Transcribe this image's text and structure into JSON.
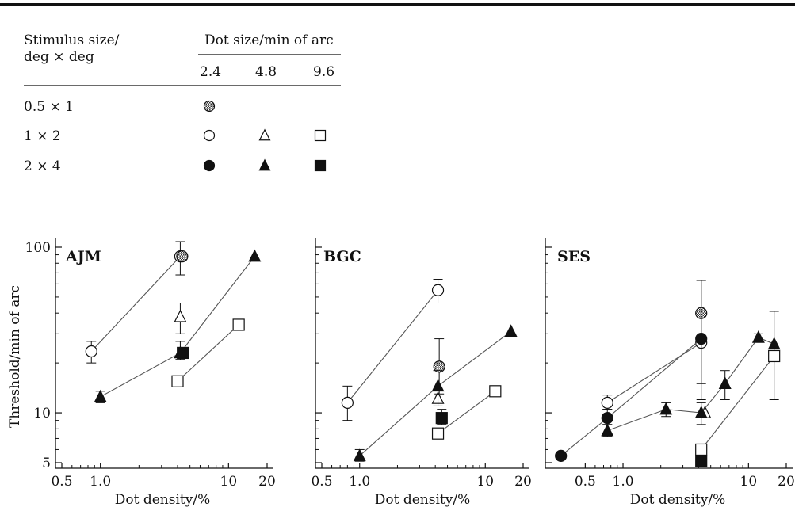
{
  "legend": {
    "row_header_line1": "Stimulus size/",
    "row_header_line2": "deg × deg",
    "col_header": "Dot size/min of arc",
    "dot_sizes": [
      "2.4",
      "4.8",
      "9.6"
    ],
    "stimulus_sizes": [
      "0.5 × 1",
      "1 × 2",
      "2 × 4"
    ],
    "entries": [
      {
        "stim": 0,
        "dot": 0,
        "marker": "circle",
        "fill": "hatched"
      },
      {
        "stim": 1,
        "dot": 0,
        "marker": "circle",
        "fill": "open"
      },
      {
        "stim": 1,
        "dot": 1,
        "marker": "triangle",
        "fill": "open"
      },
      {
        "stim": 1,
        "dot": 2,
        "marker": "square",
        "fill": "open"
      },
      {
        "stim": 2,
        "dot": 0,
        "marker": "circle",
        "fill": "filled"
      },
      {
        "stim": 2,
        "dot": 1,
        "marker": "triangle",
        "fill": "filled"
      },
      {
        "stim": 2,
        "dot": 2,
        "marker": "square",
        "fill": "filled"
      }
    ]
  },
  "shared": {
    "ylabel": "Threshold/min of arc",
    "xlabel": "Dot density/%",
    "yticks": [
      5,
      10,
      100
    ],
    "ytick_labels": [
      "5",
      "10",
      "100"
    ],
    "xticks": [
      0.5,
      1.0,
      10,
      20
    ],
    "xtick_labels": [
      "0.5",
      "1.0",
      "10",
      "20"
    ],
    "ylim": [
      5,
      100
    ],
    "xlim": [
      0.5,
      20
    ],
    "xscale": "log",
    "yscale": "log",
    "colors": {
      "ink": "#111111",
      "line": "#555555"
    }
  },
  "chart_data": [
    {
      "type": "scatter",
      "title": "AJM",
      "series": [
        {
          "marker": "circle",
          "fill": "open",
          "points": [
            {
              "x": 0.85,
              "y": 23.5,
              "err": [
                20,
                27
              ]
            },
            {
              "x": 4.2,
              "y": 88,
              "err": [
                68,
                108
              ]
            }
          ]
        },
        {
          "marker": "circle",
          "fill": "hatched",
          "points": [
            {
              "x": 4.35,
              "y": 88
            }
          ]
        },
        {
          "marker": "triangle",
          "fill": "open",
          "points": [
            {
              "x": 4.2,
              "y": 38,
              "err": [
                30,
                46
              ]
            }
          ]
        },
        {
          "marker": "triangle",
          "fill": "filled",
          "points": [
            {
              "x": 1.0,
              "y": 12.5,
              "err": [
                11.5,
                13.5
              ]
            },
            {
              "x": 4.2,
              "y": 23,
              "err": [
                21,
                27
              ]
            },
            {
              "x": 16,
              "y": 88
            }
          ]
        },
        {
          "marker": "square",
          "fill": "open",
          "points": [
            {
              "x": 4.0,
              "y": 15.5
            },
            {
              "x": 12,
              "y": 34
            }
          ]
        },
        {
          "marker": "square",
          "fill": "filled",
          "points": [
            {
              "x": 4.4,
              "y": 23
            }
          ]
        }
      ]
    },
    {
      "type": "scatter",
      "title": "BGC",
      "series": [
        {
          "marker": "circle",
          "fill": "open",
          "points": [
            {
              "x": 0.8,
              "y": 11.5,
              "err": [
                9,
                14.5
              ]
            },
            {
              "x": 4.2,
              "y": 55,
              "err": [
                46,
                64
              ]
            }
          ]
        },
        {
          "marker": "circle",
          "fill": "hatched",
          "points": [
            {
              "x": 4.3,
              "y": 19,
              "err": [
                13,
                28
              ]
            }
          ]
        },
        {
          "marker": "triangle",
          "fill": "open",
          "points": [
            {
              "x": 4.2,
              "y": 12.2
            }
          ]
        },
        {
          "marker": "triangle",
          "fill": "filled",
          "points": [
            {
              "x": 1.0,
              "y": 5.5,
              "err": [
                5.1,
                6.0
              ]
            },
            {
              "x": 4.2,
              "y": 14.5,
              "err": [
                11,
                18
              ]
            },
            {
              "x": 16,
              "y": 31
            }
          ]
        },
        {
          "marker": "square",
          "fill": "open",
          "points": [
            {
              "x": 4.2,
              "y": 7.5
            },
            {
              "x": 12,
              "y": 13.5
            }
          ]
        },
        {
          "marker": "square",
          "fill": "filled",
          "points": [
            {
              "x": 4.5,
              "y": 9.3,
              "err": [
                8.5,
                10.5
              ]
            }
          ]
        }
      ]
    },
    {
      "type": "scatter",
      "title": "SES",
      "series": [
        {
          "marker": "circle",
          "fill": "open",
          "points": [
            {
              "x": 0.75,
              "y": 11.5,
              "err": [
                10.5,
                12.8
              ]
            },
            {
              "x": 4.2,
              "y": 26.5
            }
          ]
        },
        {
          "marker": "circle",
          "fill": "hatched",
          "points": [
            {
              "x": 4.2,
              "y": 40,
              "err": [
                15,
                63
              ]
            }
          ]
        },
        {
          "marker": "circle",
          "fill": "filled",
          "points": [
            {
              "x": 0.32,
              "y": 5.5
            },
            {
              "x": 0.75,
              "y": 9.3,
              "err": [
                8.5,
                10.5
              ]
            },
            {
              "x": 4.2,
              "y": 28,
              "err": [
                12,
                63
              ]
            }
          ]
        },
        {
          "marker": "triangle",
          "fill": "open",
          "points": [
            {
              "x": 4.5,
              "y": 10
            }
          ]
        },
        {
          "marker": "triangle",
          "fill": "filled",
          "points": [
            {
              "x": 0.75,
              "y": 7.8,
              "err": [
                7.2,
                8.5
              ]
            },
            {
              "x": 2.2,
              "y": 10.5,
              "err": [
                9.5,
                11.5
              ]
            },
            {
              "x": 4.2,
              "y": 10,
              "err": [
                8.5,
                11.5
              ]
            },
            {
              "x": 6.5,
              "y": 15,
              "err": [
                12,
                18
              ]
            },
            {
              "x": 12,
              "y": 28.5,
              "err": [
                27,
                30
              ]
            },
            {
              "x": 16,
              "y": 26,
              "err": [
                12,
                41
              ]
            }
          ]
        },
        {
          "marker": "square",
          "fill": "open",
          "points": [
            {
              "x": 4.2,
              "y": 6
            },
            {
              "x": 16,
              "y": 22
            }
          ]
        },
        {
          "marker": "square",
          "fill": "filled",
          "points": [
            {
              "x": 4.2,
              "y": 5.1
            }
          ]
        }
      ]
    }
  ]
}
